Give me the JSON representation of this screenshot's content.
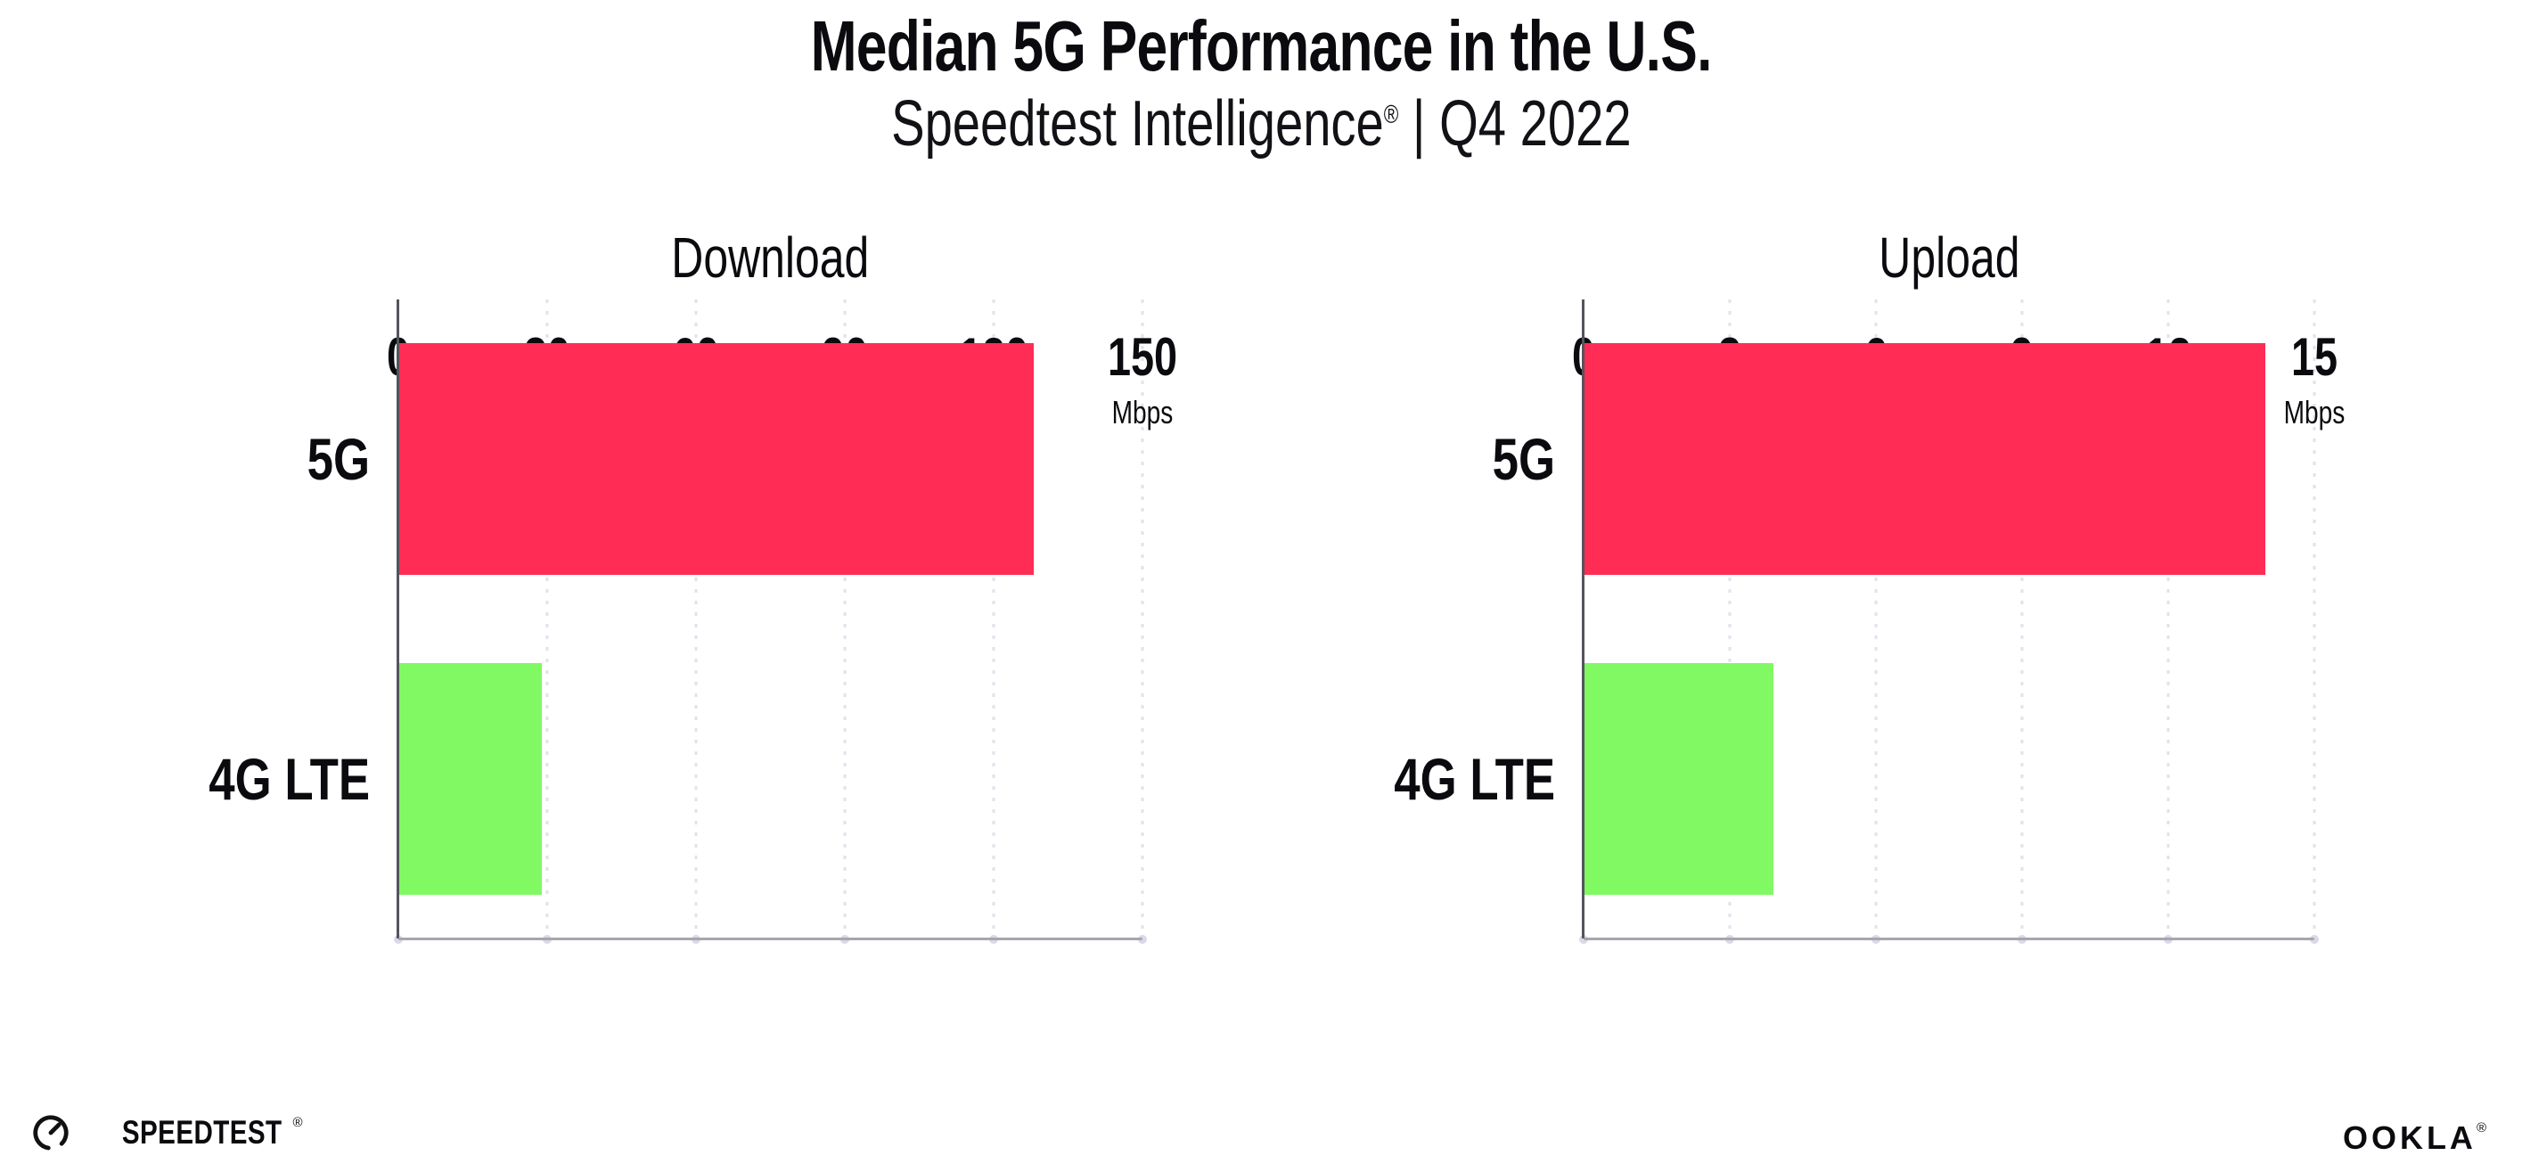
{
  "header": {
    "title": "Median 5G Performance in the U.S.",
    "subtitle_brand": "Speedtest Intelligence",
    "subtitle_reg": "®",
    "subtitle_rest": " | Q4 2022"
  },
  "colors": {
    "bar_5g": "#FF2D55",
    "bar_4g_lte": "#80F963",
    "gridline": "#E2E2EC",
    "x_axis": "#A6A6AE",
    "y_axis": "#54545C",
    "text": "#0B0B0F"
  },
  "chart_data": [
    {
      "type": "bar",
      "orientation": "horizontal",
      "title": "Download",
      "categories": [
        "5G",
        "4G LTE"
      ],
      "values": [
        128,
        29
      ],
      "unit": "Mbps",
      "xlim": [
        0,
        150
      ],
      "xticks": [
        0,
        30,
        60,
        90,
        120,
        150
      ],
      "tick_unit": "Mbps",
      "bar_colors": [
        "#FF2D55",
        "#80F963"
      ],
      "grid": "dotted-vertical",
      "legend": "none"
    },
    {
      "type": "bar",
      "orientation": "horizontal",
      "title": "Upload",
      "categories": [
        "5G",
        "4G LTE"
      ],
      "values": [
        14,
        3.9
      ],
      "unit": "Mbps",
      "xlim": [
        0,
        15
      ],
      "xticks": [
        0,
        3,
        6,
        9,
        12,
        15
      ],
      "tick_unit": "Mbps",
      "bar_colors": [
        "#FF2D55",
        "#80F963"
      ],
      "grid": "dotted-vertical",
      "legend": "none"
    }
  ],
  "footer": {
    "speedtest_label": "SPEEDTEST",
    "speedtest_reg": "®",
    "ookla_label": "OOKLA",
    "ookla_reg": "®"
  }
}
